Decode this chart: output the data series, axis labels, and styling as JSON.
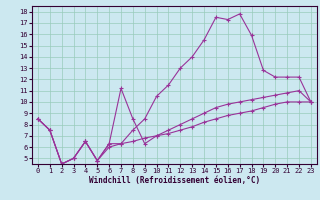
{
  "xlabel": "Windchill (Refroidissement éolien,°C)",
  "bg_color": "#cce8f0",
  "grid_color": "#99ccbb",
  "line_color": "#993399",
  "xlim": [
    -0.5,
    23.5
  ],
  "ylim": [
    4.5,
    18.5
  ],
  "xticks": [
    0,
    1,
    2,
    3,
    4,
    5,
    6,
    7,
    8,
    9,
    10,
    11,
    12,
    13,
    14,
    15,
    16,
    17,
    18,
    19,
    20,
    21,
    22,
    23
  ],
  "yticks": [
    5,
    6,
    7,
    8,
    9,
    10,
    11,
    12,
    13,
    14,
    15,
    16,
    17,
    18
  ],
  "lines": [
    {
      "x": [
        0,
        1,
        2,
        3,
        4,
        5,
        6,
        7,
        8,
        9,
        10,
        11,
        12,
        13,
        14,
        15,
        16,
        17,
        18,
        19,
        20,
        21,
        22,
        23
      ],
      "y": [
        8.5,
        7.5,
        4.5,
        5.0,
        6.5,
        4.8,
        6.3,
        6.3,
        7.5,
        8.5,
        10.5,
        11.5,
        13.0,
        14.0,
        15.5,
        17.5,
        17.3,
        17.8,
        15.9,
        12.8,
        12.2,
        12.2,
        12.2,
        10.0
      ]
    },
    {
      "x": [
        0,
        1,
        2,
        3,
        4,
        5,
        6,
        7,
        8,
        9,
        10,
        11,
        12,
        13,
        14,
        15,
        16,
        17,
        18,
        19,
        20,
        21,
        22,
        23
      ],
      "y": [
        8.5,
        7.5,
        4.5,
        5.0,
        6.5,
        4.8,
        6.3,
        11.2,
        8.5,
        6.3,
        7.0,
        7.5,
        8.0,
        8.5,
        9.0,
        9.5,
        9.8,
        10.0,
        10.2,
        10.4,
        10.6,
        10.8,
        11.0,
        10.0
      ]
    },
    {
      "x": [
        0,
        1,
        2,
        3,
        4,
        5,
        6,
        7,
        8,
        9,
        10,
        11,
        12,
        13,
        14,
        15,
        16,
        17,
        18,
        19,
        20,
        21,
        22,
        23
      ],
      "y": [
        8.5,
        7.5,
        4.5,
        5.0,
        6.5,
        4.8,
        6.0,
        6.3,
        6.5,
        6.8,
        7.0,
        7.2,
        7.5,
        7.8,
        8.2,
        8.5,
        8.8,
        9.0,
        9.2,
        9.5,
        9.8,
        10.0,
        10.0,
        10.0
      ]
    }
  ]
}
